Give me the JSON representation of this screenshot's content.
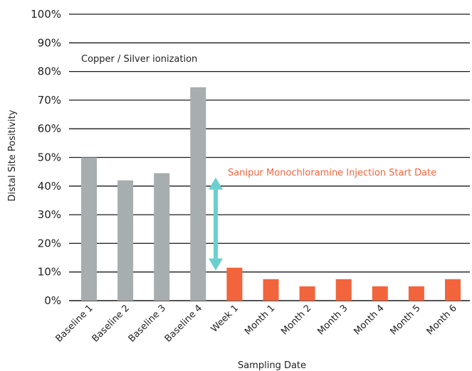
{
  "chart_data": {
    "type": "bar",
    "title": "",
    "xlabel": "Sampling Date",
    "ylabel": "Distal Site Positivity",
    "ylim": [
      0,
      100
    ],
    "yticks": [
      "0%",
      "10%",
      "20%",
      "30%",
      "40%",
      "50%",
      "60%",
      "70%",
      "80%",
      "90%",
      "100%"
    ],
    "grid": "horizontal",
    "categories": [
      "Baseline 1",
      "Baseline 2",
      "Baseline 3",
      "Baseline 4",
      "Week 1",
      "Month 1",
      "Month 2",
      "Month 3",
      "Month 4",
      "Month 5",
      "Month 6"
    ],
    "values": [
      50,
      42,
      44.5,
      74.5,
      11.5,
      7.5,
      5,
      7.5,
      5,
      5,
      7.5
    ],
    "bar_colors": [
      "#a8adaf",
      "#a8adaf",
      "#a8adaf",
      "#a8adaf",
      "#f2643c",
      "#f2643c",
      "#f2643c",
      "#f2643c",
      "#f2643c",
      "#f2643c",
      "#f2643c"
    ],
    "annotations": {
      "period_label": "Copper / Silver ionization",
      "event_label": "Sanipur Monochloramine Injection Start Date",
      "event_color": "#f2643c",
      "arrow_color": "#6ccfcf",
      "arrow_from": 43,
      "arrow_to": 10.5
    }
  }
}
